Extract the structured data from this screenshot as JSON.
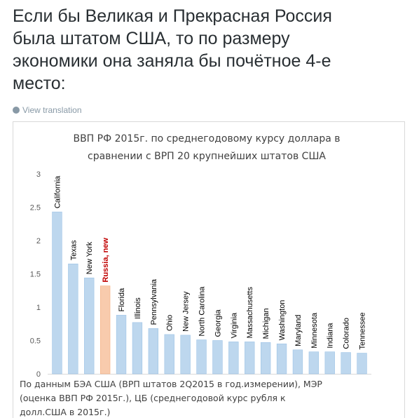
{
  "tweet": {
    "lines": [
      "Если бы Великая и Прекрасная Россия",
      "была штатом США, то по размеру",
      "экономики она заняла бы почётное 4-е",
      "место:"
    ],
    "translate": "View translation"
  },
  "chart_data": {
    "type": "bar",
    "title": [
      "ВВП РФ 2015г. по среднегодовому курсу доллара в",
      "сравнении с ВРП 20 крупнейших штатов США"
    ],
    "footnote": [
      "По данным БЭА США (ВРП штатов 2Q2015 в год.измерении), МЭР",
      "(оценка ВВП РФ 2015г.), ЦБ (среднегодовой курс рубля к",
      "долл.США в 2015г.)"
    ],
    "categories": [
      "California",
      "Texas",
      "New York",
      "Russia, new",
      "Florida",
      "Illinois",
      "Pennsylvania",
      "Ohio",
      "New Jersey",
      "North Carolina",
      "Georgia",
      "Virginia",
      "Massachusetts",
      "Michigan",
      "Washington",
      "Maryland",
      "Minnesota",
      "Indiana",
      "Colorado",
      "Tennessee"
    ],
    "values": [
      2.43,
      1.65,
      1.44,
      1.32,
      0.88,
      0.77,
      0.68,
      0.59,
      0.58,
      0.51,
      0.5,
      0.48,
      0.48,
      0.47,
      0.45,
      0.36,
      0.33,
      0.33,
      0.32,
      0.31
    ],
    "colors": [
      "#bdd7ee",
      "#bdd7ee",
      "#bdd7ee",
      "#f8cbad",
      "#bdd7ee",
      "#bdd7ee",
      "#bdd7ee",
      "#bdd7ee",
      "#bdd7ee",
      "#bdd7ee",
      "#bdd7ee",
      "#bdd7ee",
      "#bdd7ee",
      "#bdd7ee",
      "#bdd7ee",
      "#bdd7ee",
      "#bdd7ee",
      "#bdd7ee",
      "#bdd7ee",
      "#bdd7ee"
    ],
    "label_colors": [
      "#000000",
      "#000000",
      "#000000",
      "#c00000",
      "#000000",
      "#000000",
      "#000000",
      "#000000",
      "#000000",
      "#000000",
      "#000000",
      "#000000",
      "#000000",
      "#000000",
      "#000000",
      "#000000",
      "#000000",
      "#000000",
      "#000000",
      "#000000"
    ],
    "ylim": [
      0,
      3
    ],
    "yticks": [
      0,
      0.5,
      1,
      1.5,
      2,
      2.5,
      3
    ],
    "grid": false
  }
}
